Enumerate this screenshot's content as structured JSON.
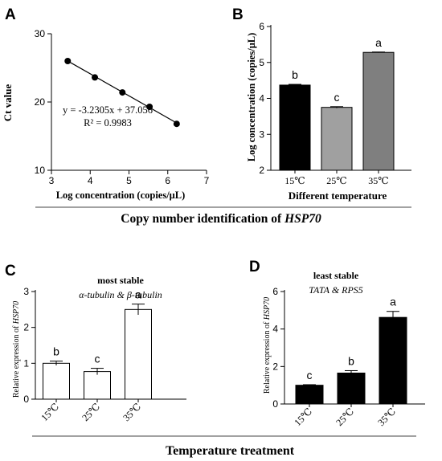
{
  "figure": {
    "section_top_title_pre": "Copy number identification of ",
    "section_top_title_gene": "HSP70",
    "section_bottom_title": "Temperature  treatment"
  },
  "chart_data": [
    {
      "panel": "A",
      "type": "scatter",
      "x": [
        3.42,
        4.12,
        4.83,
        5.53,
        6.23
      ],
      "y": [
        26.0,
        23.6,
        21.4,
        19.3,
        16.8
      ],
      "fit": {
        "slope": -3.2305,
        "intercept": 37.056
      },
      "equation": "y = -3.2305x + 37.056",
      "r2_text": "R² = 0.9983",
      "xlabel": "Log concentration (copies/μL)",
      "ylabel": "Ct value",
      "xlim": [
        3,
        7
      ],
      "ylim": [
        10,
        30
      ],
      "xticks": [
        "3",
        "4",
        "5",
        "6",
        "7"
      ],
      "yticks": [
        "10",
        "20",
        "30"
      ],
      "grid": false
    },
    {
      "panel": "B",
      "type": "bar",
      "categories": [
        "15℃",
        "25℃",
        "35℃"
      ],
      "values": [
        4.37,
        3.75,
        5.28
      ],
      "errors": [
        0.02,
        0.02,
        0.01
      ],
      "letters": [
        "b",
        "c",
        "a"
      ],
      "colors": [
        "#000000",
        "#a0a0a0",
        "#7f7f7f"
      ],
      "xlabel": "Different temperature",
      "ylabel": "Log concentration (copies/μL)",
      "ylim": [
        2,
        6
      ],
      "yticks": [
        "2",
        "3",
        "4",
        "5",
        "6"
      ],
      "grid": false
    },
    {
      "panel": "C",
      "type": "bar",
      "categories": [
        "15℃",
        "25℃",
        "35℃"
      ],
      "values": [
        1.0,
        0.77,
        2.5
      ],
      "errors": [
        0.06,
        0.09,
        0.15
      ],
      "letters": [
        "b",
        "c",
        "a"
      ],
      "colors": [
        "#ffffff",
        "#ffffff",
        "#ffffff"
      ],
      "title": "most stable",
      "subtitle": "α-tubulin & β-tubulin",
      "ylabel": "Relative expression of HSP70",
      "ylim": [
        0,
        3
      ],
      "yticks": [
        "0",
        "1",
        "2",
        "3"
      ],
      "grid": false
    },
    {
      "panel": "D",
      "type": "bar",
      "categories": [
        "15℃",
        "25℃",
        "35℃"
      ],
      "values": [
        1.0,
        1.65,
        4.62
      ],
      "errors": [
        0.03,
        0.13,
        0.32
      ],
      "letters": [
        "c",
        "b",
        "a"
      ],
      "colors": [
        "#000000",
        "#000000",
        "#000000"
      ],
      "title": "least stable",
      "subtitle": "TATA & RPS5",
      "ylabel": "Relative expression of HSP70",
      "ylim": [
        0,
        6
      ],
      "yticks": [
        "0",
        "2",
        "4",
        "6"
      ],
      "grid": false
    }
  ]
}
